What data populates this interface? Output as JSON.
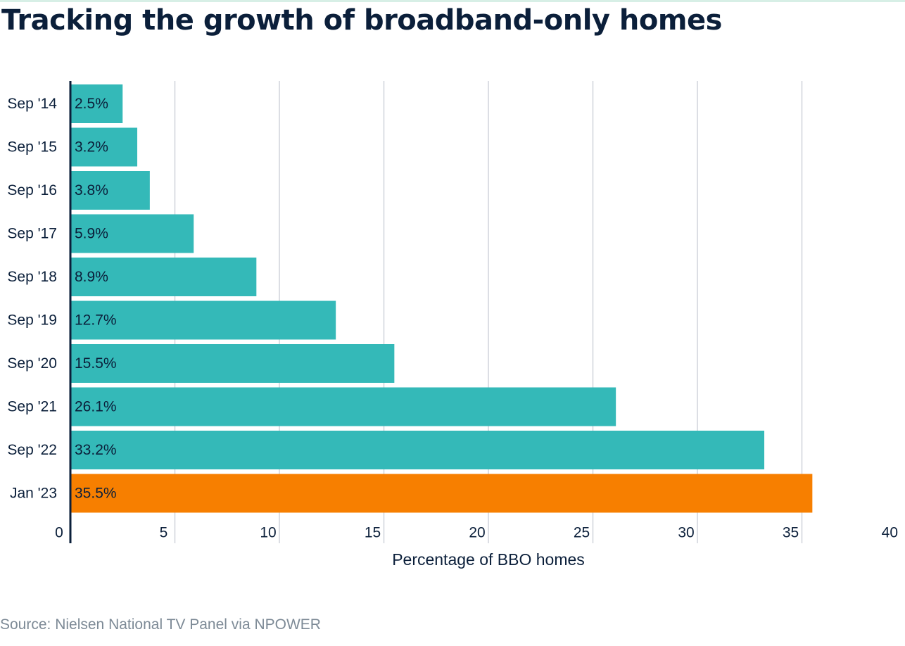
{
  "header": {
    "title": "Tracking the growth of broadband-only homes"
  },
  "chart_data": {
    "type": "bar",
    "orientation": "horizontal",
    "title": "Tracking the growth of broadband-only homes",
    "xlabel": "Percentage of BBO homes",
    "ylabel": "",
    "xlim": [
      0,
      40
    ],
    "x_ticks": [
      0,
      5,
      10,
      15,
      20,
      25,
      30,
      35,
      40
    ],
    "grid": true,
    "categories": [
      "Sep '14",
      "Sep '15",
      "Sep '16",
      "Sep '17",
      "Sep '18",
      "Sep '19",
      "Sep '20",
      "Sep '21",
      "Sep '22",
      "Jan '23"
    ],
    "values": [
      2.5,
      3.2,
      3.8,
      5.9,
      8.9,
      12.7,
      15.5,
      26.1,
      33.2,
      35.5
    ],
    "data_labels": [
      "2.5%",
      "3.2%",
      "3.8%",
      "5.9%",
      "8.9%",
      "12.7%",
      "15.5%",
      "26.1%",
      "33.2%",
      "35.5%"
    ],
    "highlight_index": 9,
    "colors": {
      "bar": "#34b9b8",
      "highlight": "#f77f00",
      "grid": "#d0d4db",
      "axis": "#0b1f3a",
      "text": "#0b1f3a"
    }
  },
  "footer": {
    "source": "Source: Nielsen National TV Panel via NPOWER"
  }
}
